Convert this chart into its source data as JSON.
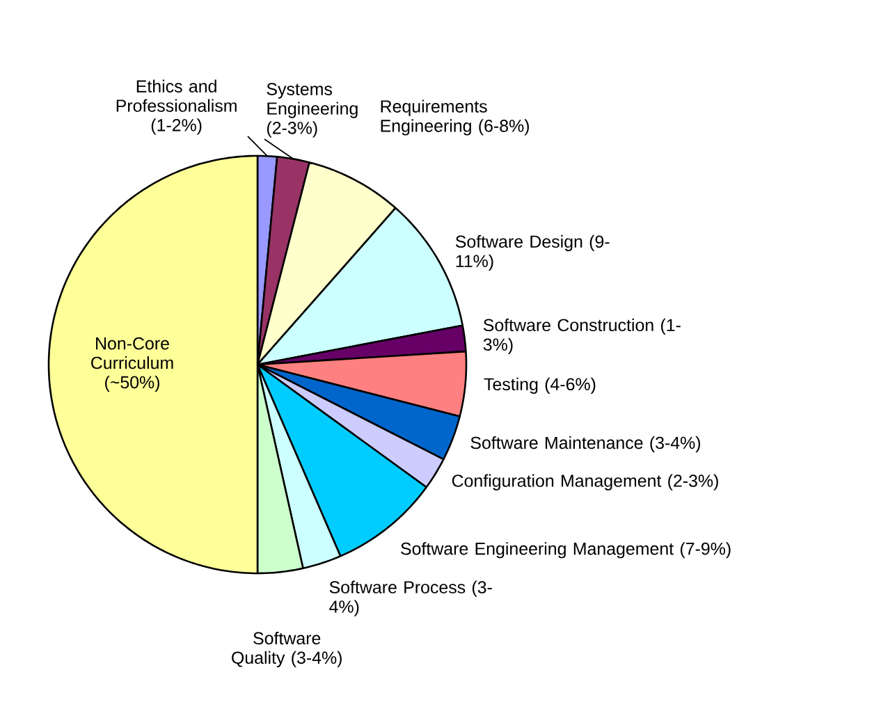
{
  "chart_data": {
    "type": "pie",
    "categories": [
      "Ethics and Professionalism (1-2%)",
      "Systems Engineering (2-3%)",
      "Requirements Engineering (6-8%)",
      "Software Design (9-11%)",
      "Software Construction (1-3%)",
      "Testing (4-6%)",
      "Software Maintenance (3-4%)",
      "Configuration Management (2-3%)",
      "Software Engineering Management (7-9%)",
      "Software Process (3-4%)",
      "Software Quality (3-4%)",
      "Non-Core Curriculum (~50%)"
    ],
    "values": [
      1.5,
      2.5,
      7.5,
      10.5,
      2,
      5,
      3.5,
      2.5,
      8.5,
      3,
      3.5,
      50
    ],
    "colors": [
      "#9999ff",
      "#993366",
      "#ffffcc",
      "#ccffff",
      "#660066",
      "#ff8080",
      "#0066cc",
      "#ccccff",
      "#00ccff",
      "#ccffff",
      "#ccffcc",
      "#ffff99"
    ]
  }
}
